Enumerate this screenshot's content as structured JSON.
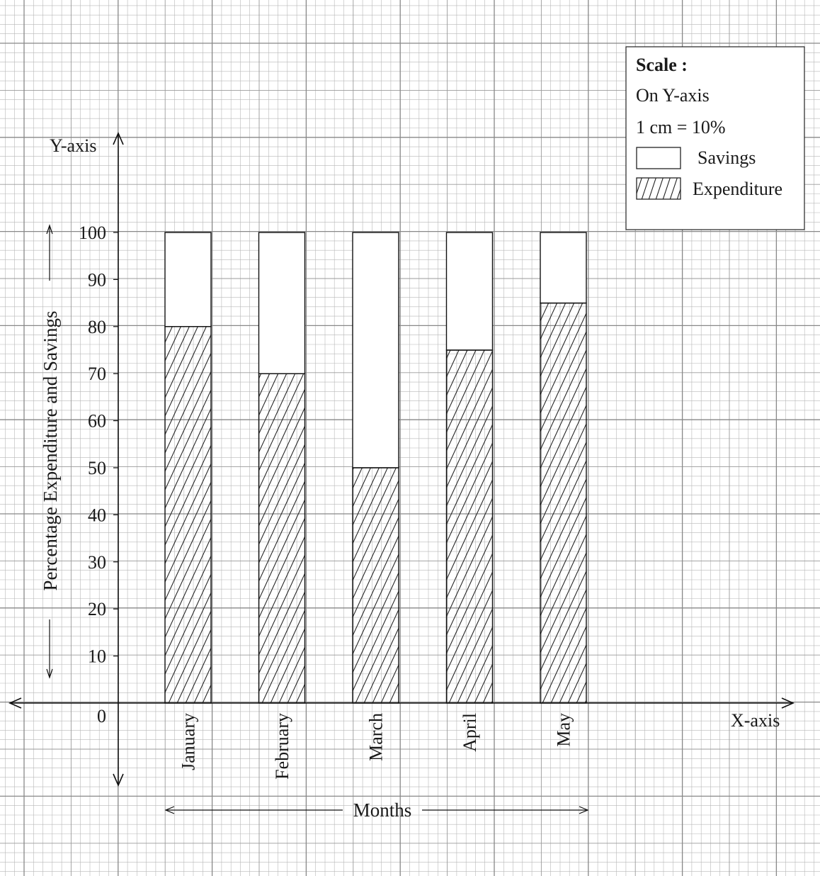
{
  "chart_data": {
    "type": "bar",
    "stacked": true,
    "categories": [
      "January",
      "February",
      "March",
      "April",
      "May"
    ],
    "series": [
      {
        "name": "Expenditure",
        "values": [
          80,
          70,
          50,
          75,
          85
        ]
      },
      {
        "name": "Savings",
        "values": [
          20,
          30,
          50,
          25,
          15
        ]
      }
    ],
    "ylim": [
      0,
      100
    ],
    "yticks": [
      "0",
      "10",
      "20",
      "30",
      "40",
      "50",
      "60",
      "70",
      "80",
      "90",
      "100"
    ],
    "y_axis_name": "Y-axis",
    "x_axis_name": "X-axis",
    "ylabel": "Percentage Expenditure and Savings",
    "xlabel": "Months",
    "grid": true,
    "legend": {
      "placement": "top-right",
      "title": "Scale :",
      "scale_line1": "On Y-axis",
      "scale_line2": "1 cm = 10%",
      "entries": [
        "Savings",
        "Expenditure"
      ]
    }
  }
}
